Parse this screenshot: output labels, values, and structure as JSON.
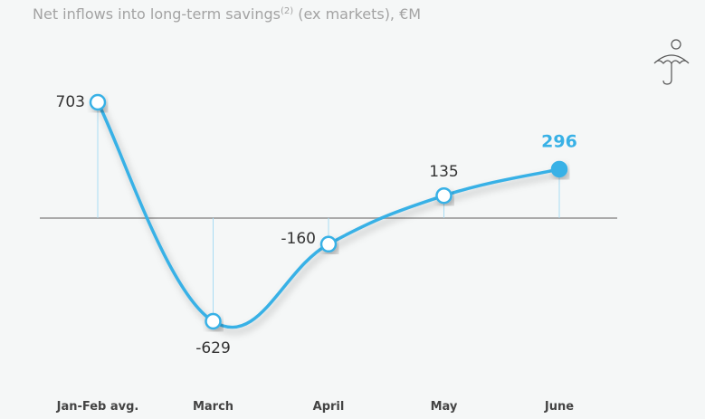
{
  "chart_data": {
    "type": "line",
    "title": "Net inflows into long-term savings",
    "title_note": "(2)",
    "title_suffix": " (ex markets), €M",
    "categories": [
      "Jan-Feb avg.",
      "March",
      "April",
      "May",
      "June"
    ],
    "values": [
      703,
      -629,
      -160,
      135,
      296
    ],
    "color": "#38b1e6",
    "highlight": "June"
  }
}
